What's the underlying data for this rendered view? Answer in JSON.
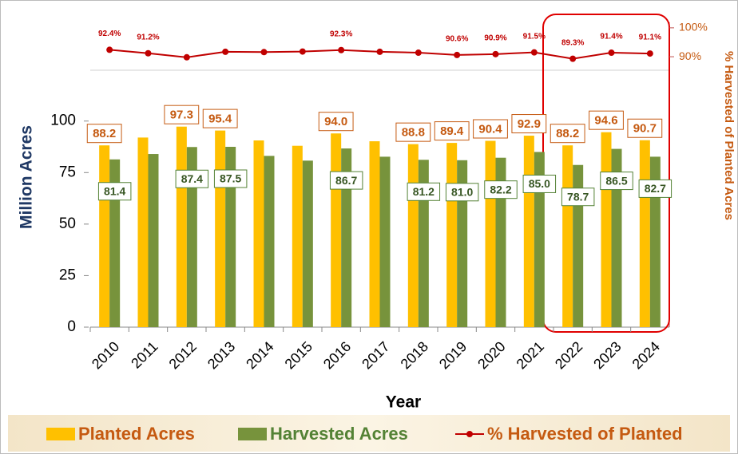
{
  "chart_data": {
    "type": "bar",
    "x_label": "Year",
    "y_label": "Million Acres",
    "y2_label": "% Harvested of Planted Acres",
    "categories": [
      "2010",
      "2011",
      "2012",
      "2013",
      "2014",
      "2015",
      "2016",
      "2017",
      "2018",
      "2019",
      "2020",
      "2021",
      "2022",
      "2023",
      "2024"
    ],
    "series": [
      {
        "name": "Planted Acres",
        "color": "#ffc000",
        "values": [
          88.2,
          92.0,
          97.3,
          95.4,
          90.6,
          88.0,
          94.0,
          90.2,
          88.8,
          89.4,
          90.4,
          92.9,
          88.2,
          94.6,
          90.7
        ],
        "value_labels": [
          "88.2",
          null,
          "97.3",
          "95.4",
          null,
          null,
          "94.0",
          null,
          "88.8",
          "89.4",
          "90.4",
          "92.9",
          "88.2",
          "94.6",
          "90.7"
        ]
      },
      {
        "name": "Harvested Acres",
        "color": "#77933c",
        "values": [
          81.4,
          84.0,
          87.4,
          87.5,
          83.1,
          80.8,
          86.7,
          82.7,
          81.2,
          81.0,
          82.2,
          85.0,
          78.7,
          86.5,
          82.7
        ],
        "value_labels": [
          "81.4",
          null,
          "87.4",
          "87.5",
          null,
          null,
          "86.7",
          null,
          "81.2",
          "81.0",
          "82.2",
          "85.0",
          "78.7",
          "86.5",
          "82.7"
        ]
      },
      {
        "name": "% Harvested of Planted",
        "color": "#c00000",
        "type": "line",
        "axis": "y2",
        "values": [
          92.4,
          91.2,
          89.8,
          91.7,
          91.6,
          91.8,
          92.3,
          91.7,
          91.4,
          90.6,
          90.9,
          91.5,
          89.3,
          91.4,
          91.1
        ],
        "value_labels": [
          "92.4%",
          "91.2%",
          null,
          null,
          null,
          null,
          "92.3%",
          null,
          null,
          "90.6%",
          "90.9%",
          "91.5%",
          "89.3%",
          "91.4%",
          "91.1%"
        ]
      }
    ],
    "ylim": [
      0,
      147.9
    ],
    "yticks": [
      0,
      25,
      50,
      75,
      100
    ],
    "y2lim": [
      -3.6,
      101.9
    ],
    "y2ticks": [
      {
        "value": 90,
        "label": "90%"
      },
      {
        "value": 100,
        "label": "100%"
      }
    ]
  }
}
